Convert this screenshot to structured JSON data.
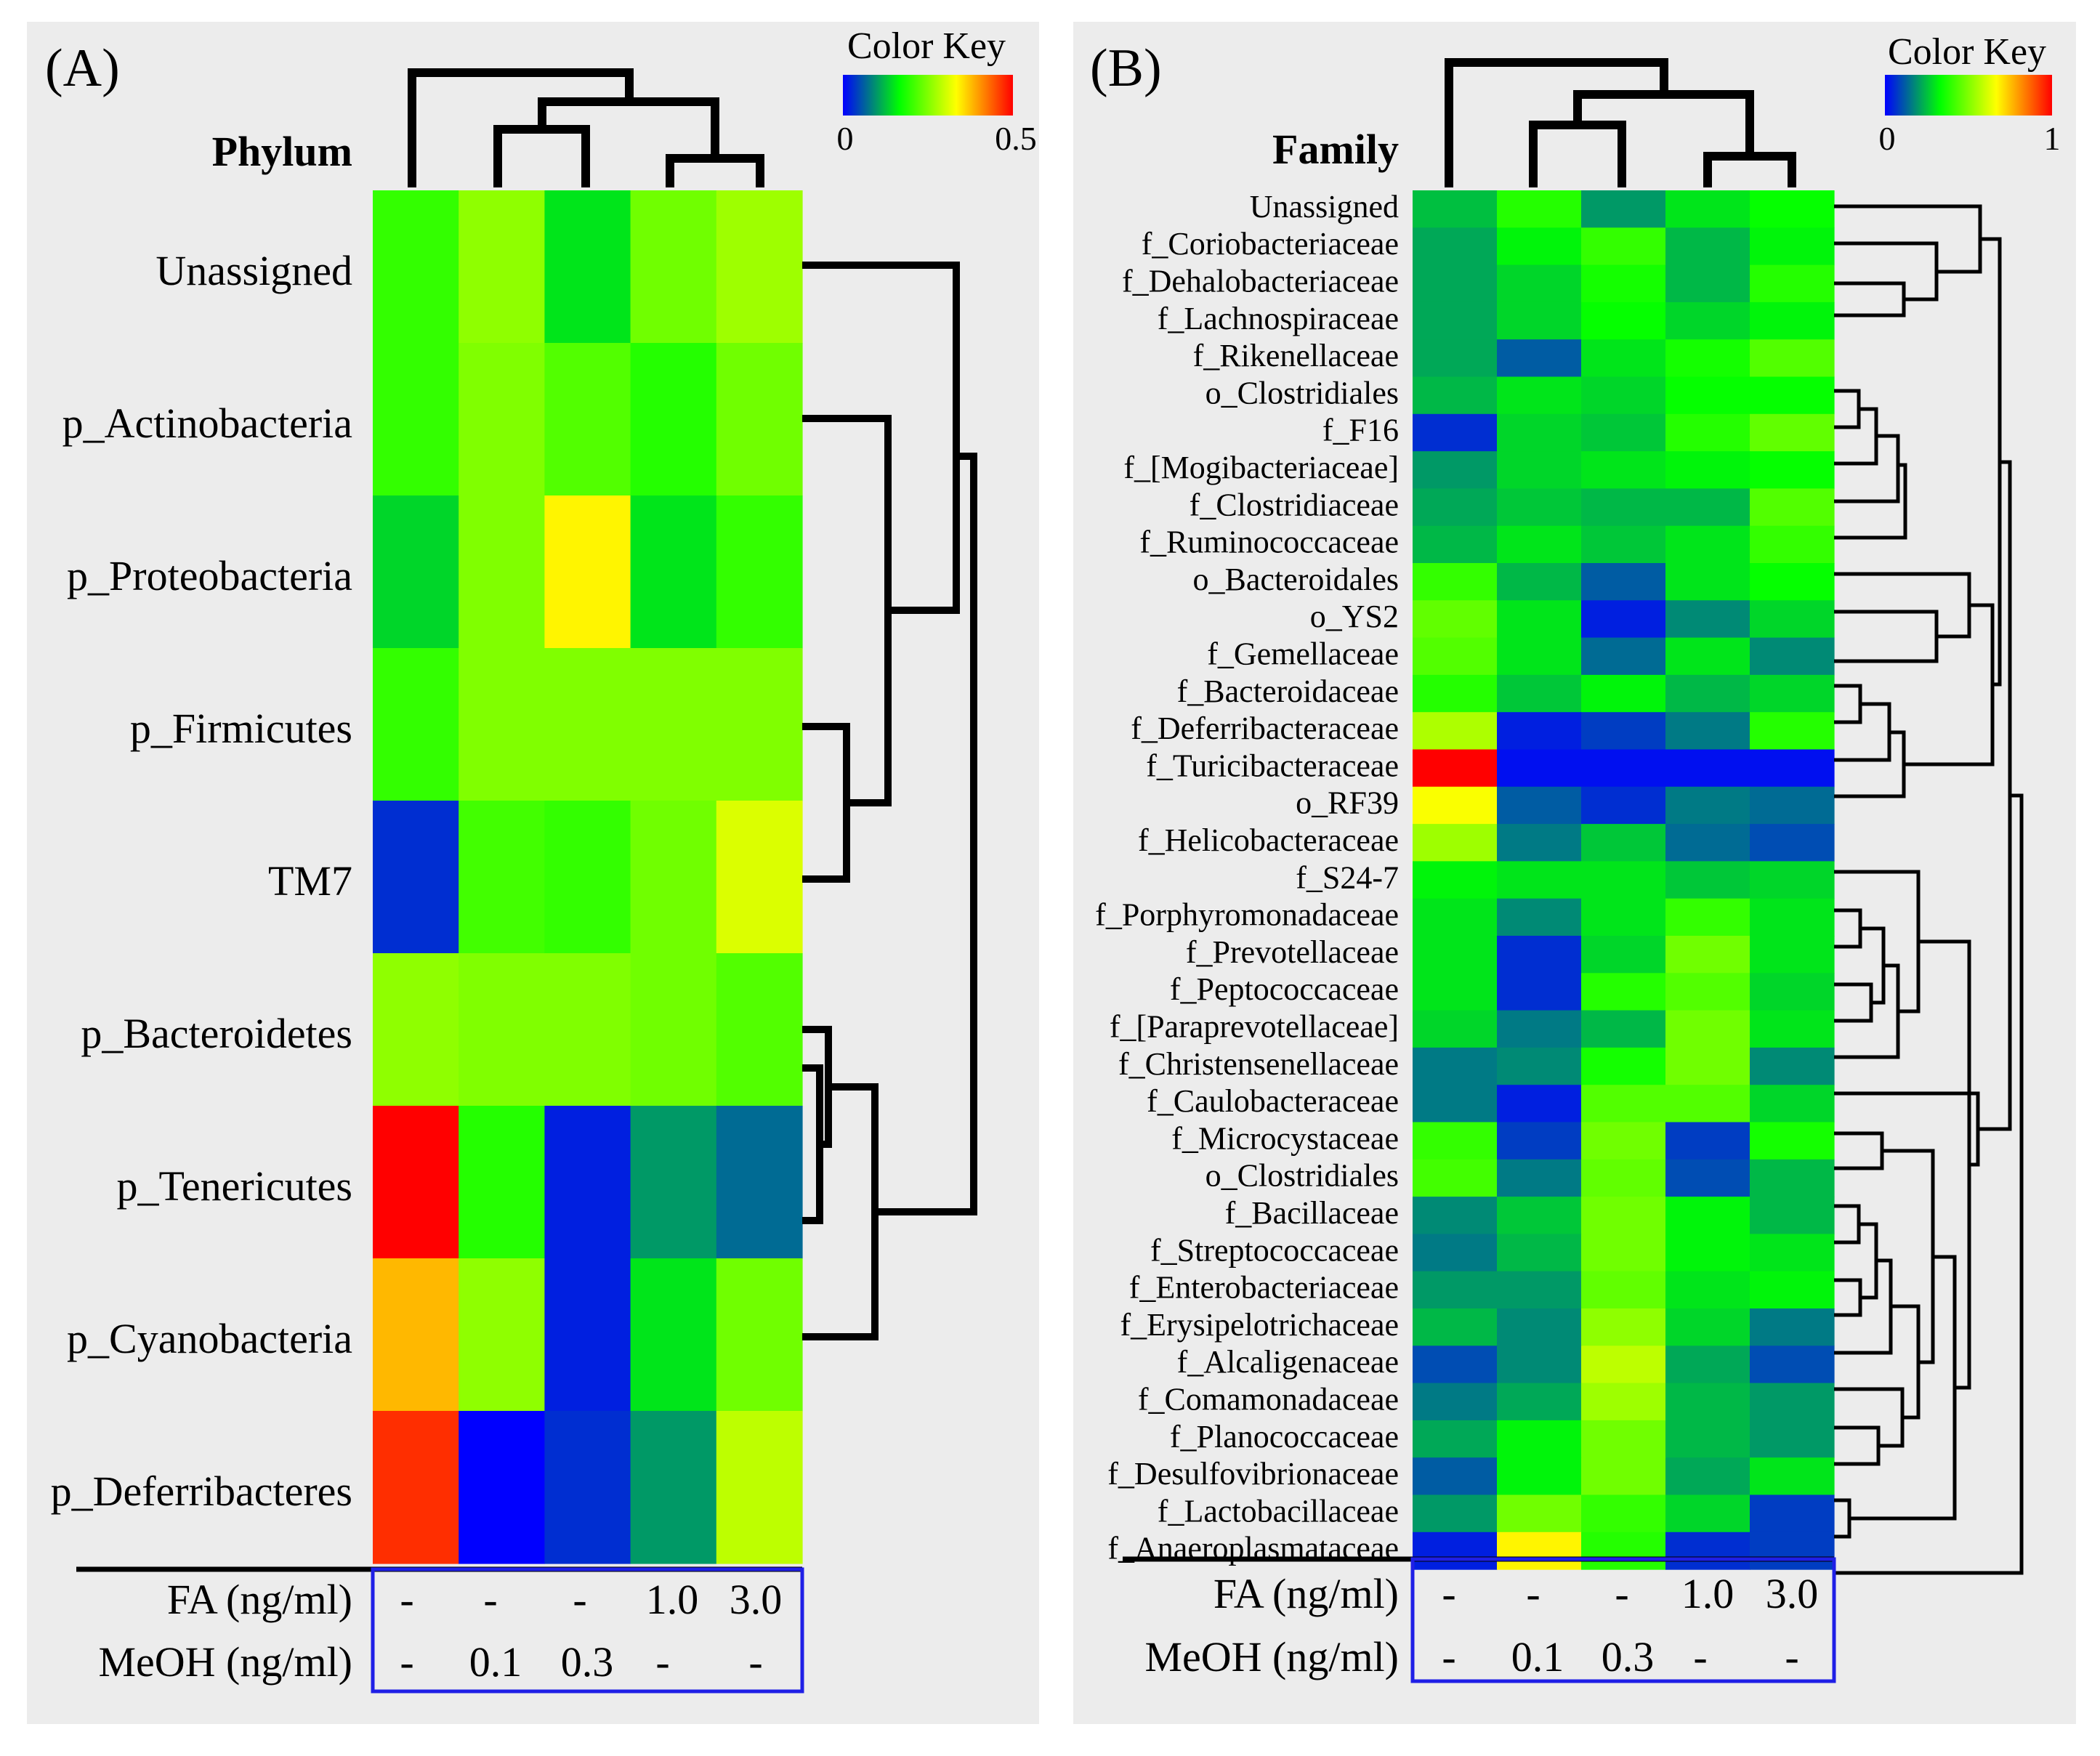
{
  "figure": {
    "panels": [
      {
        "panel_label": "(A)",
        "row_header": "Phylum",
        "color_key": {
          "title": "Color Key",
          "min_label": "0",
          "max_label": "0.5"
        },
        "conditions": {
          "fa_label": "FA (ng/ml)",
          "meoh_label": "MeOH (ng/ml)",
          "fa_values": [
            "-",
            "-",
            "-",
            "1.0",
            "3.0"
          ],
          "meoh_values": [
            "-",
            "0.1",
            "0.3",
            "-",
            "-"
          ]
        }
      },
      {
        "panel_label": "(B)",
        "row_header": "Family",
        "color_key": {
          "title": "Color Key",
          "min_label": "0",
          "max_label": "1"
        },
        "conditions": {
          "fa_label": "FA (ng/ml)",
          "meoh_label": "MeOH (ng/ml)",
          "fa_values": [
            "-",
            "-",
            "-",
            "1.0",
            "3.0"
          ],
          "meoh_values": [
            "-",
            "0.1",
            "0.3",
            "-",
            "-"
          ]
        }
      }
    ]
  },
  "chart_data": [
    {
      "type": "heatmap",
      "title": "(A) Phylum",
      "colorscale": [
        "#0000ff",
        "#00ff00",
        "#ffff00",
        "#ff0000"
      ],
      "vmin": 0,
      "vmax": 0.5,
      "columns": [
        "FA - / MeOH -",
        "FA - / MeOH 0.1",
        "FA - / MeOH 0.3",
        "FA 1.0 / MeOH -",
        "FA 3.0 / MeOH -"
      ],
      "rows": [
        "Unassigned",
        "p_Actinobacteria",
        "p_Proteobacteria",
        "p_Firmicutes",
        "TM7",
        "p_Bacteroidetes",
        "p_Tenericutes",
        "p_Cyanobacteria",
        "p_Deferribacteres"
      ],
      "values": [
        [
          0.2,
          0.26,
          0.15,
          0.24,
          0.27
        ],
        [
          0.2,
          0.25,
          0.22,
          0.19,
          0.24
        ],
        [
          0.14,
          0.25,
          0.34,
          0.15,
          0.2
        ],
        [
          0.2,
          0.25,
          0.25,
          0.25,
          0.25
        ],
        [
          0.03,
          0.21,
          0.2,
          0.24,
          0.31
        ],
        [
          0.26,
          0.25,
          0.25,
          0.24,
          0.22
        ],
        [
          0.5,
          0.19,
          0.02,
          0.1,
          0.07
        ],
        [
          0.38,
          0.26,
          0.02,
          0.15,
          0.24
        ],
        [
          0.47,
          0.0,
          0.03,
          0.1,
          0.29
        ]
      ]
    },
    {
      "type": "heatmap",
      "title": "(B) Family",
      "colorscale": [
        "#0000ff",
        "#00ff00",
        "#ffff00",
        "#ff0000"
      ],
      "vmin": 0,
      "vmax": 1,
      "columns": [
        "FA - / MeOH -",
        "FA - / MeOH 0.1",
        "FA - / MeOH 0.3",
        "FA 1.0 / MeOH -",
        "FA 3.0 / MeOH -"
      ],
      "rows": [
        "Unassigned",
        "f_Coriobacteriaceae",
        "f_Dehalobacteriaceae",
        "f_Lachnospiraceae",
        "f_Rikenellaceae",
        "o_Clostridiales",
        "f_F16",
        "f_[Mogibacteriaceae]",
        "f_Clostridiaceae",
        "f_Ruminococcaceae",
        "o_Bacteroidales",
        "o_YS2",
        "f_Gemellaceae",
        "f_Bacteroidaceae",
        "f_Deferribacteraceae",
        "f_Turicibacteraceae",
        "o_RF39",
        "f_Helicobacteraceae",
        "f_S24-7",
        "f_Porphyromonadaceae",
        "f_Prevotellaceae",
        "f_Peptococcaceae",
        "f_[Paraprevotellaceae]",
        "f_Christensenellaceae",
        "f_Caulobacteraceae",
        "f_Microcystaceae",
        "o_Clostridiales",
        "f_Bacillaceae",
        "f_Streptococcaceae",
        "f_Enterobacteriaceae",
        "f_Erysipelotrichaceae",
        "f_Alcaligenaceae",
        "f_Comamonadaceae",
        "f_Planococcaceae",
        "f_Desulfovibrionaceae",
        "f_Lactobacillaceae",
        "f_Anaeroplasmataceae"
      ],
      "values": [
        [
          0.25,
          0.38,
          0.2,
          0.3,
          0.34
        ],
        [
          0.22,
          0.32,
          0.4,
          0.24,
          0.32
        ],
        [
          0.22,
          0.28,
          0.36,
          0.24,
          0.38
        ],
        [
          0.22,
          0.28,
          0.34,
          0.28,
          0.32
        ],
        [
          0.22,
          0.12,
          0.3,
          0.36,
          0.44
        ],
        [
          0.24,
          0.3,
          0.28,
          0.34,
          0.34
        ],
        [
          0.06,
          0.28,
          0.26,
          0.38,
          0.46
        ],
        [
          0.2,
          0.28,
          0.3,
          0.32,
          0.34
        ],
        [
          0.22,
          0.26,
          0.24,
          0.24,
          0.44
        ],
        [
          0.24,
          0.3,
          0.26,
          0.3,
          0.4
        ],
        [
          0.4,
          0.24,
          0.12,
          0.3,
          0.34
        ],
        [
          0.46,
          0.3,
          0.04,
          0.18,
          0.28
        ],
        [
          0.44,
          0.3,
          0.14,
          0.3,
          0.18
        ],
        [
          0.38,
          0.26,
          0.32,
          0.24,
          0.28
        ],
        [
          0.56,
          0.04,
          0.08,
          0.16,
          0.38
        ],
        [
          1.0,
          0.02,
          0.02,
          0.02,
          0.02
        ],
        [
          0.66,
          0.12,
          0.06,
          0.16,
          0.14
        ],
        [
          0.54,
          0.16,
          0.26,
          0.14,
          0.1
        ],
        [
          0.32,
          0.3,
          0.3,
          0.26,
          0.28
        ],
        [
          0.3,
          0.18,
          0.3,
          0.4,
          0.3
        ],
        [
          0.3,
          0.06,
          0.28,
          0.48,
          0.3
        ],
        [
          0.3,
          0.06,
          0.38,
          0.44,
          0.28
        ],
        [
          0.28,
          0.16,
          0.24,
          0.48,
          0.3
        ],
        [
          0.16,
          0.18,
          0.36,
          0.48,
          0.18
        ],
        [
          0.16,
          0.04,
          0.44,
          0.44,
          0.28
        ],
        [
          0.4,
          0.08,
          0.48,
          0.08,
          0.36
        ],
        [
          0.42,
          0.16,
          0.46,
          0.1,
          0.24
        ],
        [
          0.18,
          0.26,
          0.48,
          0.32,
          0.24
        ],
        [
          0.16,
          0.24,
          0.48,
          0.32,
          0.3
        ],
        [
          0.2,
          0.2,
          0.46,
          0.3,
          0.32
        ],
        [
          0.24,
          0.18,
          0.52,
          0.28,
          0.16
        ],
        [
          0.1,
          0.18,
          0.58,
          0.22,
          0.1
        ],
        [
          0.16,
          0.22,
          0.54,
          0.24,
          0.2
        ],
        [
          0.22,
          0.32,
          0.48,
          0.24,
          0.2
        ],
        [
          0.12,
          0.32,
          0.48,
          0.22,
          0.3
        ],
        [
          0.2,
          0.48,
          0.4,
          0.28,
          0.08
        ],
        [
          0.04,
          0.68,
          0.38,
          0.06,
          0.08
        ]
      ]
    }
  ]
}
